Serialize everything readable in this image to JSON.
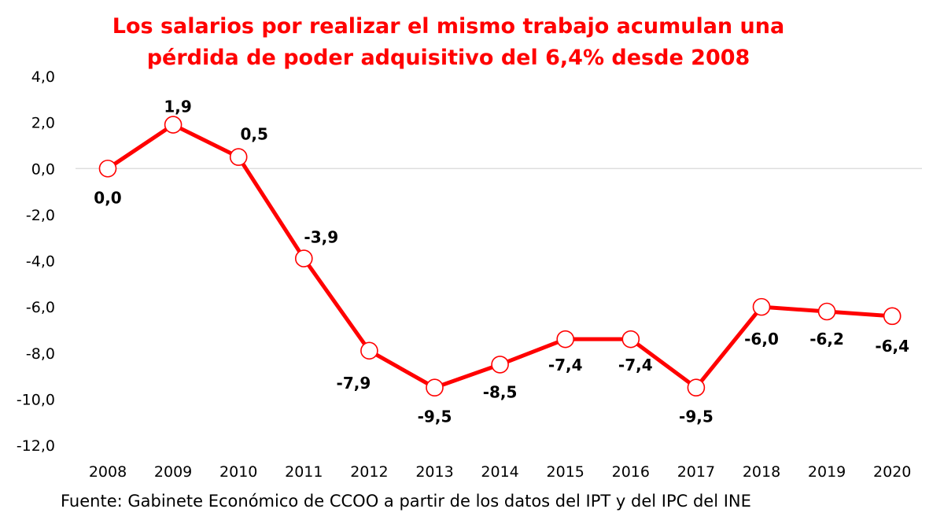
{
  "chart_data": {
    "type": "line",
    "title_lines": [
      "Los salarios por realizar el mismo trabajo acumulan una",
      "pérdida de poder adquisitivo del 6,4% desde 2008"
    ],
    "categories": [
      "2008",
      "2009",
      "2010",
      "2011",
      "2012",
      "2013",
      "2014",
      "2015",
      "2016",
      "2017",
      "2018",
      "2019",
      "2020"
    ],
    "series": [
      {
        "values": [
          0.0,
          1.9,
          0.5,
          -3.9,
          -7.9,
          -9.5,
          -8.5,
          -7.4,
          -7.4,
          -9.5,
          -6.0,
          -6.2,
          -6.4
        ],
        "labels": [
          "0,0",
          "1,9",
          "0,5",
          "-3,9",
          "-7,9",
          "-9,5",
          "-8,5",
          "-7,4",
          "-7,4",
          "-9,5",
          "-6,0",
          "-6,2",
          "-6,4"
        ],
        "color": "#ff0000"
      }
    ],
    "ylim": [
      -12,
      4
    ],
    "yticks": [
      4,
      2,
      0,
      -2,
      -4,
      -6,
      -8,
      -10,
      -12
    ],
    "ytick_labels": [
      "4,0",
      "2,0",
      "0,0",
      "-2,0",
      "-4,0",
      "-6,0",
      "-8,0",
      "-10,0",
      "-12,0"
    ],
    "grid": false,
    "zero_line": true,
    "marker_fill": "#ffffff",
    "source": "Fuente: Gabinete Económico de CCOO a partir de los datos del IPT y del IPC del INE"
  }
}
